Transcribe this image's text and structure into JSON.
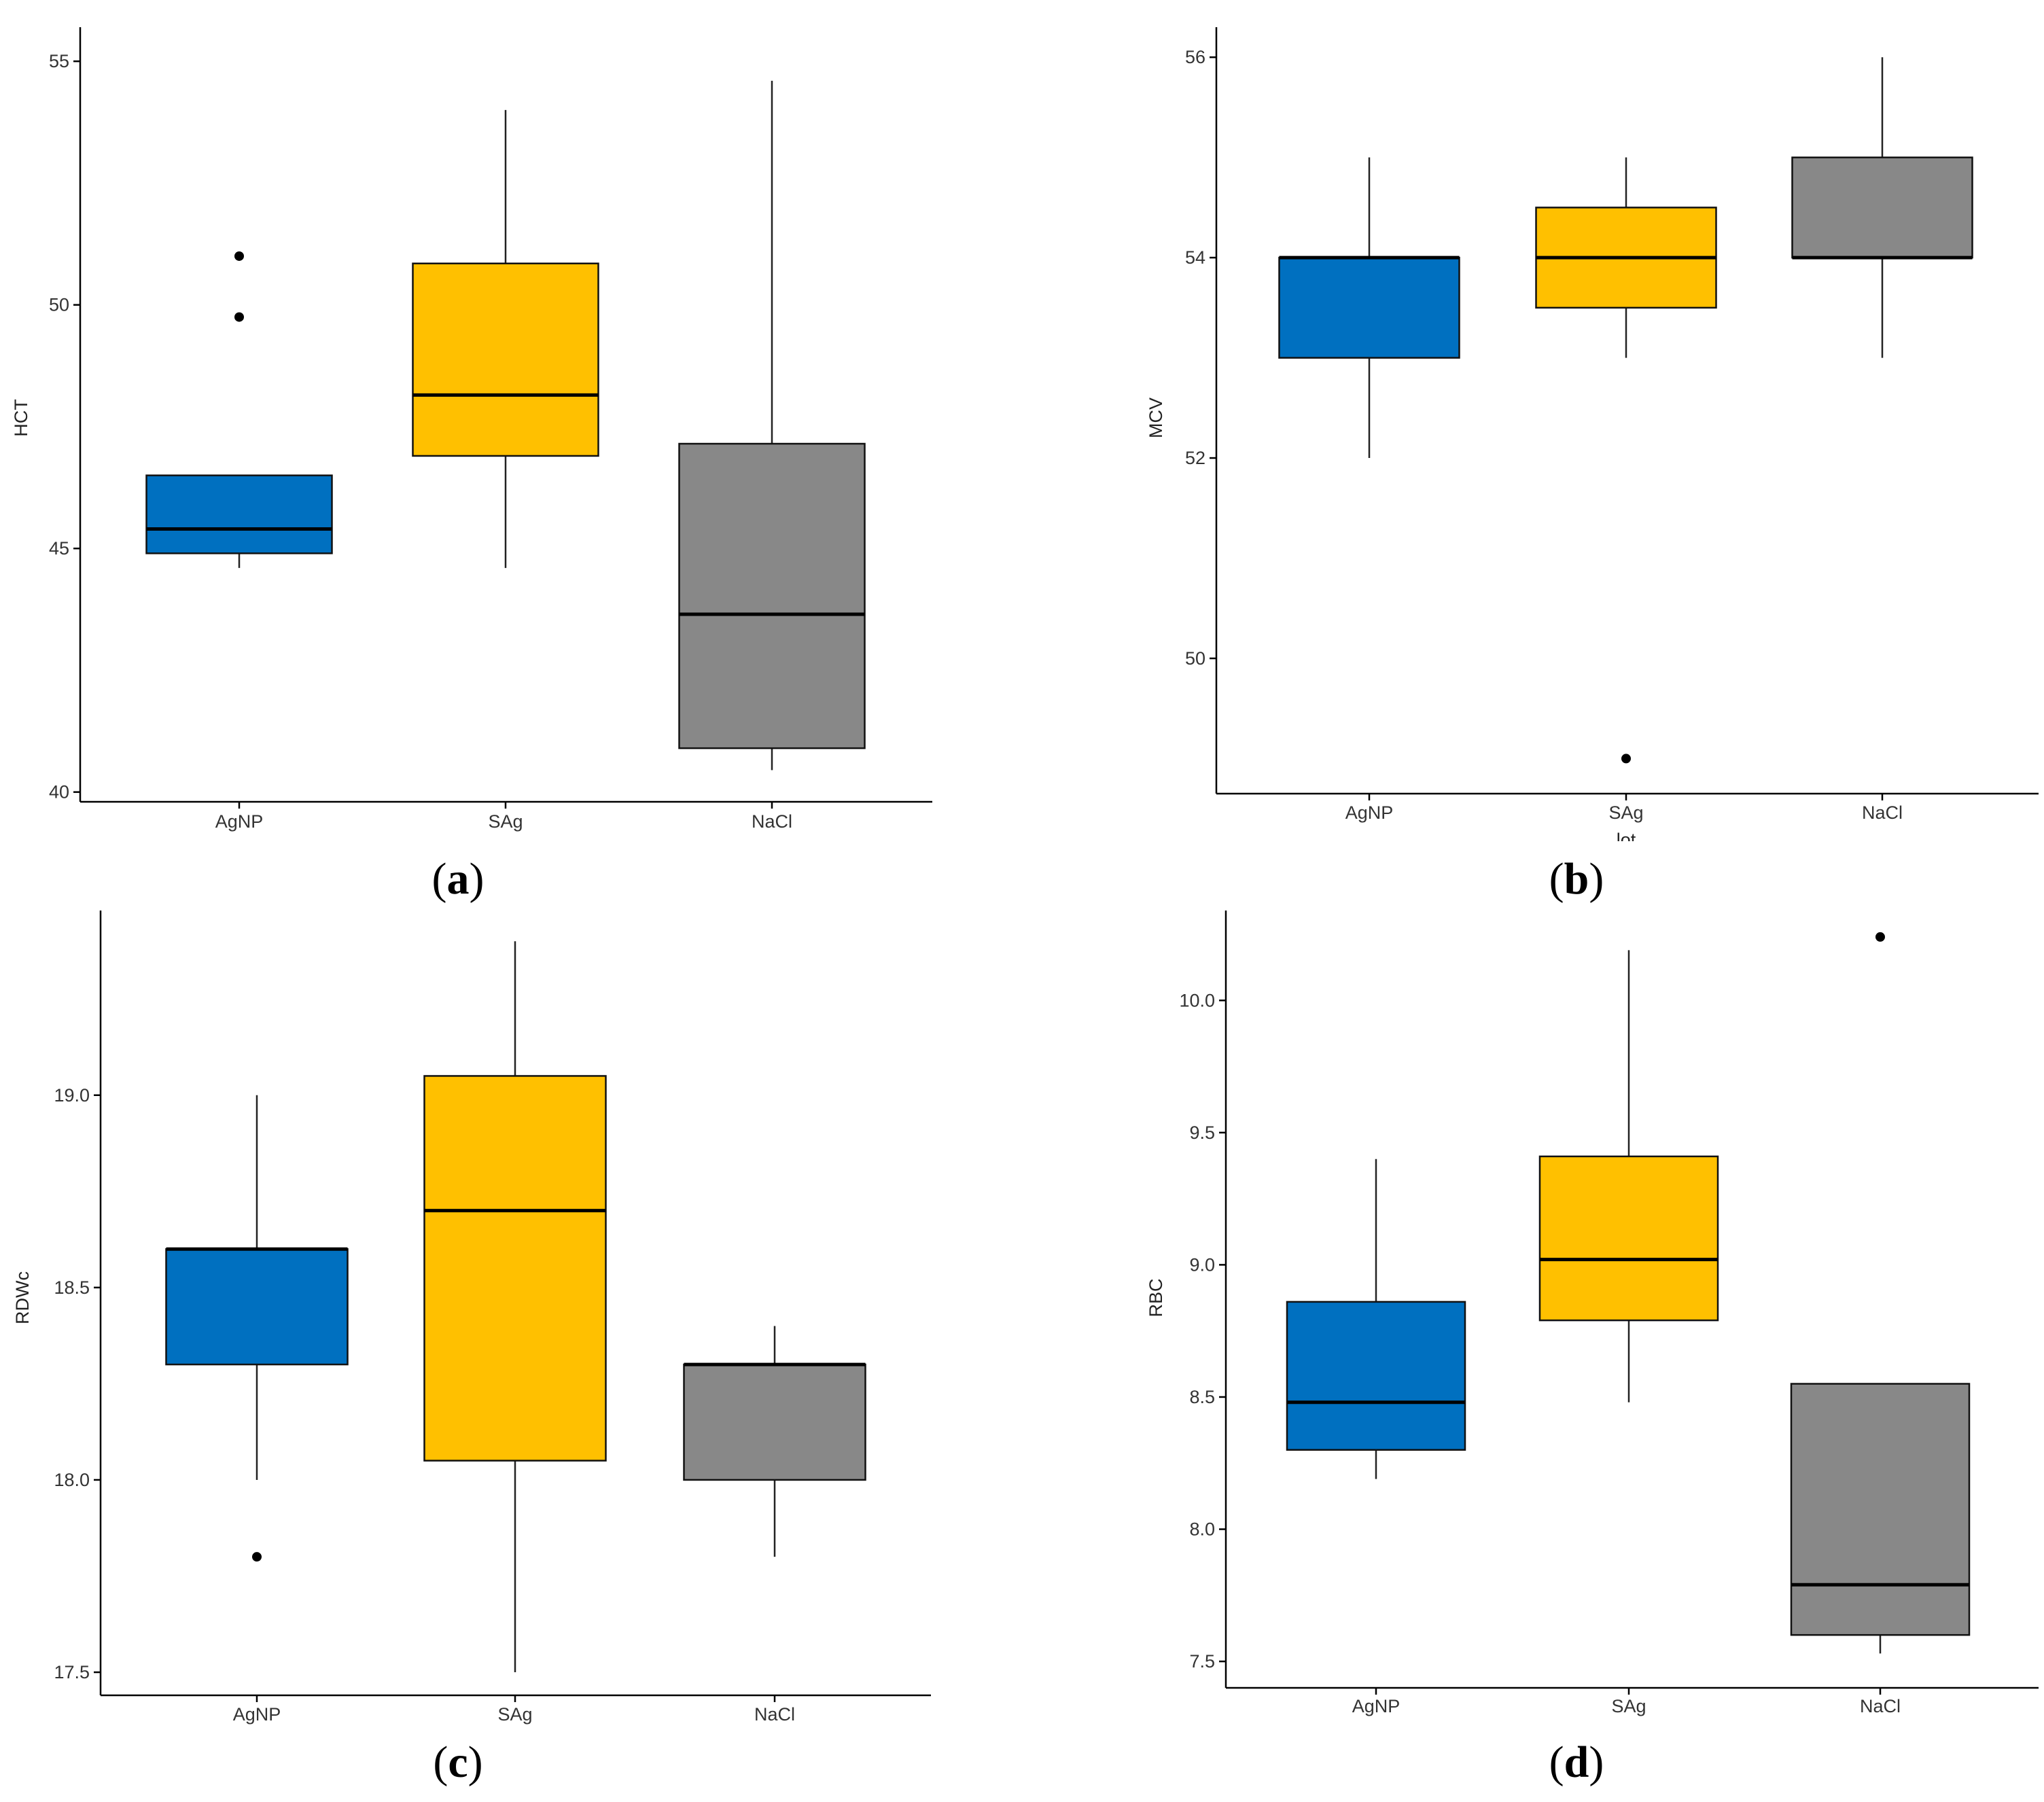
{
  "colors": {
    "AgNP": "#0070C0",
    "SAg": "#FFC000",
    "NaCl": "#888888"
  },
  "chart_data": [
    {
      "id": "a",
      "type": "boxplot",
      "panel_label": "a",
      "ylabel": "HCT",
      "xlabel": "",
      "ylim": [
        39.8,
        55.7
      ],
      "yticks": [
        40,
        45,
        50,
        55
      ],
      "ytick_labels": [
        "40",
        "45",
        "50",
        "55"
      ],
      "categories": [
        "AgNP",
        "SAg",
        "NaCl"
      ],
      "boxes": [
        {
          "name": "AgNP",
          "low": 44.6,
          "q1": 44.9,
          "median": 45.4,
          "q3": 46.5,
          "high": 46.5,
          "outliers": [
            49.75,
            51.0
          ]
        },
        {
          "name": "SAg",
          "low": 44.6,
          "q1": 46.9,
          "median": 48.15,
          "q3": 50.85,
          "high": 54.0,
          "outliers": []
        },
        {
          "name": "NaCl",
          "low": 40.45,
          "q1": 40.9,
          "median": 43.65,
          "q3": 47.15,
          "high": 54.6,
          "outliers": []
        }
      ]
    },
    {
      "id": "b",
      "type": "boxplot",
      "panel_label": "b",
      "ylabel": "MCV",
      "xlabel": "lot",
      "ylim": [
        48.65,
        56.3
      ],
      "yticks": [
        50,
        52,
        54,
        56
      ],
      "ytick_labels": [
        "50",
        "52",
        "54",
        "56"
      ],
      "categories": [
        "AgNP",
        "SAg",
        "NaCl"
      ],
      "boxes": [
        {
          "name": "AgNP",
          "low": 52.0,
          "q1": 53.0,
          "median": 54.0,
          "q3": 54.0,
          "high": 55.0,
          "outliers": []
        },
        {
          "name": "SAg",
          "low": 53.0,
          "q1": 53.5,
          "median": 54.0,
          "q3": 54.5,
          "high": 55.0,
          "outliers": [
            49.0
          ]
        },
        {
          "name": "NaCl",
          "low": 53.0,
          "q1": 54.0,
          "median": 54.0,
          "q3": 55.0,
          "high": 56.0,
          "outliers": []
        }
      ]
    },
    {
      "id": "c",
      "type": "boxplot",
      "panel_label": "c",
      "ylabel": "RDWc",
      "xlabel": "",
      "ylim": [
        17.44,
        19.48
      ],
      "yticks": [
        17.5,
        18.0,
        18.5,
        19.0
      ],
      "ytick_labels": [
        "17.5",
        "18.0",
        "18.5",
        "19.0"
      ],
      "categories": [
        "AgNP",
        "SAg",
        "NaCl"
      ],
      "boxes": [
        {
          "name": "AgNP",
          "low": 18.0,
          "q1": 18.3,
          "median": 18.6,
          "q3": 18.6,
          "high": 19.0,
          "outliers": [
            17.8
          ]
        },
        {
          "name": "SAg",
          "low": 17.5,
          "q1": 18.05,
          "median": 18.7,
          "q3": 19.05,
          "high": 19.4,
          "outliers": []
        },
        {
          "name": "NaCl",
          "low": 17.8,
          "q1": 18.0,
          "median": 18.3,
          "q3": 18.3,
          "high": 18.4,
          "outliers": []
        }
      ]
    },
    {
      "id": "d",
      "type": "boxplot",
      "panel_label": "d",
      "ylabel": "RBC",
      "xlabel": "",
      "ylim": [
        7.4,
        10.34
      ],
      "yticks": [
        7.5,
        8.0,
        8.5,
        9.0,
        9.5,
        10.0
      ],
      "ytick_labels": [
        "7.5",
        "8.0",
        "8.5",
        "9.0",
        "9.5",
        "10.0"
      ],
      "categories": [
        "AgNP",
        "SAg",
        "NaCl"
      ],
      "boxes": [
        {
          "name": "AgNP",
          "low": 8.19,
          "q1": 8.3,
          "median": 8.48,
          "q3": 8.86,
          "high": 9.4,
          "outliers": []
        },
        {
          "name": "SAg",
          "low": 8.48,
          "q1": 8.79,
          "median": 9.02,
          "q3": 9.41,
          "high": 10.19,
          "outliers": []
        },
        {
          "name": "NaCl",
          "low": 7.53,
          "q1": 7.6,
          "median": 7.79,
          "q3": 8.55,
          "high": 8.55,
          "outliers": [
            10.24
          ]
        }
      ]
    }
  ]
}
